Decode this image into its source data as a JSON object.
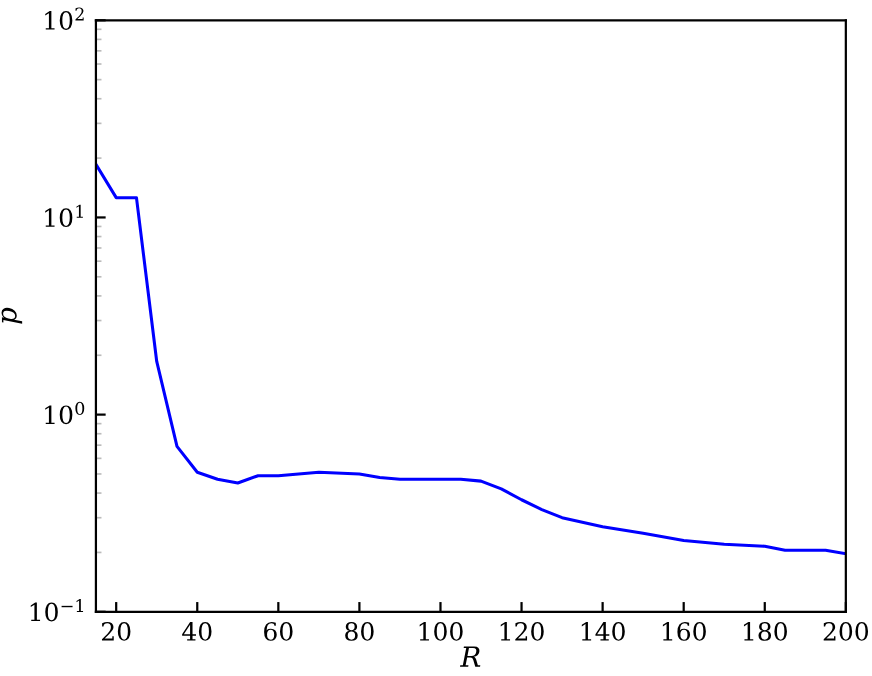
{
  "chart_data": {
    "type": "line",
    "xlabel": "R",
    "ylabel": "p",
    "log": "y",
    "xlim": [
      15,
      200
    ],
    "xticks": [
      20,
      40,
      60,
      80,
      100,
      120,
      140,
      160,
      180,
      200
    ],
    "ylim": [
      0.1,
      100
    ],
    "yticks": [
      {
        "value": 0.1,
        "label": "10$^{−1}$"
      },
      {
        "value": 1,
        "label": "10$^{0}$"
      },
      {
        "value": 10,
        "label": "10$^{1}$"
      },
      {
        "value": 100,
        "label": "10$^{2}$"
      }
    ],
    "grid": false,
    "legend": false,
    "series": [
      {
        "color": "#0000ff",
        "x": [
          15,
          20,
          25,
          30,
          35,
          40,
          45,
          50,
          55,
          60,
          70,
          80,
          85,
          90,
          100,
          105,
          110,
          115,
          120,
          125,
          130,
          140,
          150,
          160,
          170,
          180,
          185,
          195,
          200
        ],
        "values": [
          18.6,
          12.6,
          12.6,
          1.86,
          0.69,
          0.51,
          0.47,
          0.45,
          0.49,
          0.49,
          0.51,
          0.5,
          0.48,
          0.47,
          0.47,
          0.47,
          0.46,
          0.42,
          0.37,
          0.33,
          0.3,
          0.27,
          0.25,
          0.23,
          0.22,
          0.215,
          0.205,
          0.205,
          0.197
        ]
      }
    ]
  }
}
